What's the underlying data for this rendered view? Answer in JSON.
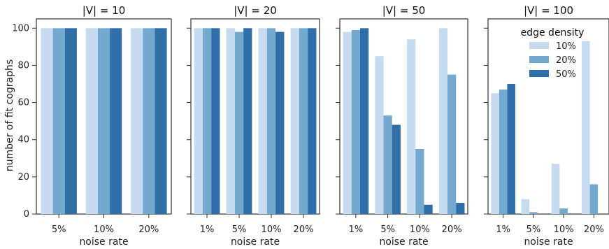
{
  "chart_data": {
    "type": "bar",
    "ylabel": "number of fit cographs",
    "xlabel": "noise rate",
    "ylim": [
      0,
      105
    ],
    "yticks": [
      0,
      20,
      40,
      60,
      80,
      100
    ],
    "grid": false,
    "legend": {
      "title": "edge density",
      "placement": "top-right of last panel",
      "entries": [
        "10%",
        "20%",
        "50%"
      ]
    },
    "colors": [
      "#c6dbef",
      "#74a9cf",
      "#2f6ea8"
    ],
    "panels": [
      {
        "title": "|V| = 10",
        "categories": [
          "5%",
          "10%",
          "20%"
        ],
        "series": [
          {
            "name": "10%",
            "values": [
              100,
              100,
              100
            ]
          },
          {
            "name": "20%",
            "values": [
              100,
              100,
              100
            ]
          },
          {
            "name": "50%",
            "values": [
              100,
              100,
              100
            ]
          }
        ]
      },
      {
        "title": "|V| = 20",
        "categories": [
          "1%",
          "5%",
          "10%",
          "20%"
        ],
        "series": [
          {
            "name": "10%",
            "values": [
              100,
              100,
              100,
              100
            ]
          },
          {
            "name": "20%",
            "values": [
              100,
              98,
              100,
              100
            ]
          },
          {
            "name": "50%",
            "values": [
              100,
              100,
              98,
              100
            ]
          }
        ]
      },
      {
        "title": "|V| = 50",
        "categories": [
          "1%",
          "5%",
          "10%",
          "20%"
        ],
        "series": [
          {
            "name": "10%",
            "values": [
              98,
              85,
              94,
              100
            ]
          },
          {
            "name": "20%",
            "values": [
              99,
              53,
              35,
              75
            ]
          },
          {
            "name": "50%",
            "values": [
              100,
              48,
              5,
              6
            ]
          }
        ]
      },
      {
        "title": "|V| = 100",
        "categories": [
          "1%",
          "5%",
          "10%",
          "20%"
        ],
        "series": [
          {
            "name": "10%",
            "values": [
              65,
              8,
              27,
              93
            ]
          },
          {
            "name": "20%",
            "values": [
              67,
              1,
              3,
              16
            ]
          },
          {
            "name": "50%",
            "values": [
              70,
              0,
              0,
              0
            ]
          }
        ]
      }
    ]
  }
}
